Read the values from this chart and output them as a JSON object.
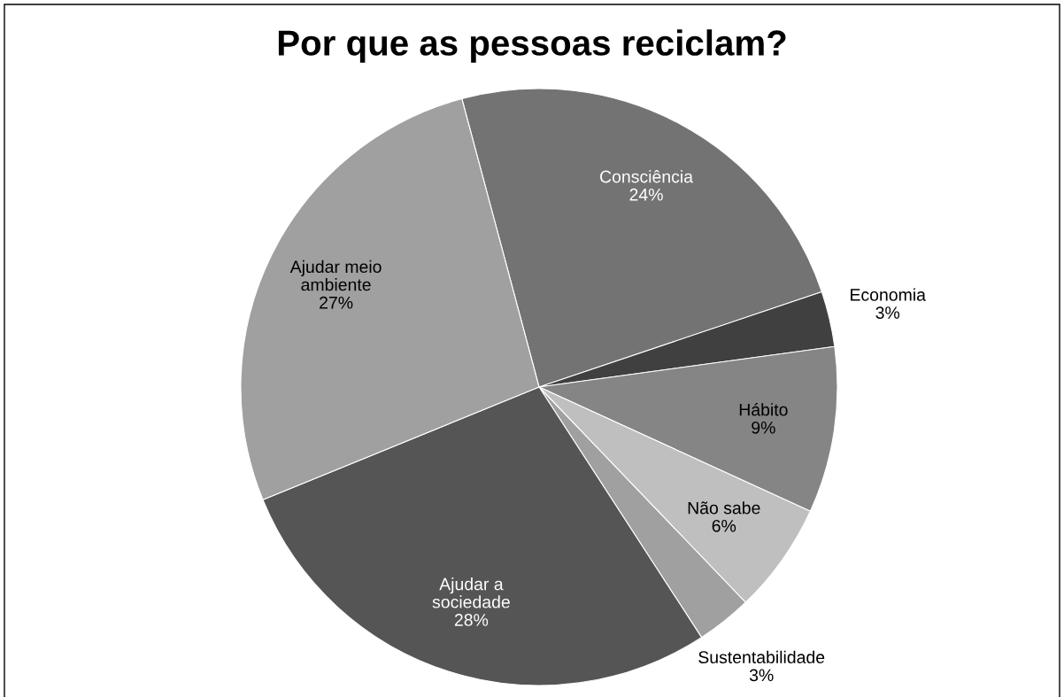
{
  "chart_data": {
    "type": "pie",
    "title": "Por que as pessoas reciclam?",
    "categories": [
      "Consciência",
      "Economia",
      "Hábito",
      "Não sabe",
      "Sustentabilidade",
      "Ajudar a\nsociedade",
      "Ajudar meio\nambiente"
    ],
    "values": [
      24,
      3,
      9,
      6,
      3,
      28,
      27
    ],
    "value_labels": [
      "24%",
      "3%",
      "9%",
      "6%",
      "3%",
      "28%",
      "27%"
    ],
    "colors": [
      "#737373",
      "#404040",
      "#858585",
      "#bfbfbf",
      "#a0a0a0",
      "#555555",
      "#a0a0a0"
    ],
    "legend": false
  }
}
